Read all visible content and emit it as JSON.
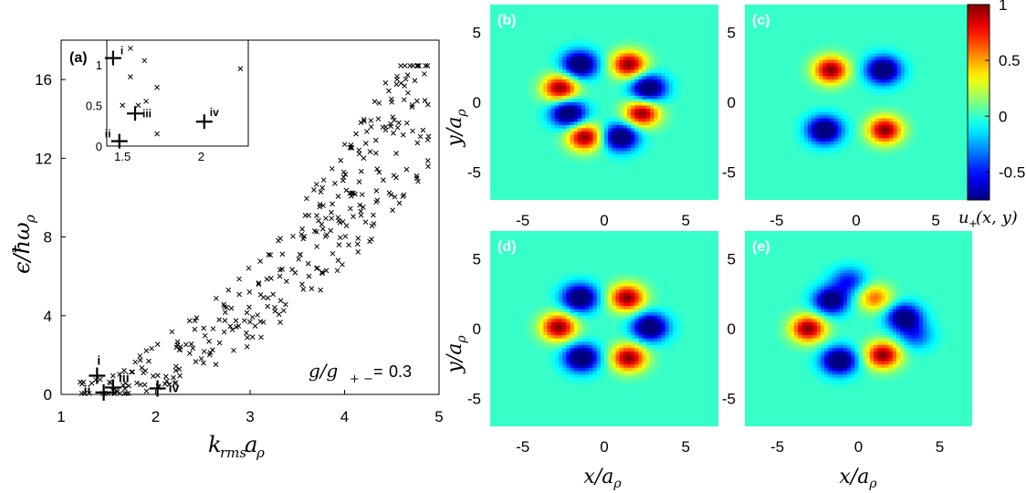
{
  "chart_data": [
    {
      "panel": "(a)",
      "type": "scatter",
      "xlabel": "k_rms a_ρ",
      "ylabel": "ϵ/ħω_ρ",
      "xlim": [
        1,
        5
      ],
      "ylim": [
        0,
        18
      ],
      "xticks": [
        "1",
        "2",
        "3",
        "4",
        "5"
      ],
      "yticks": [
        "0",
        "4",
        "8",
        "12",
        "16"
      ],
      "annotation": "g/g+− = 0.3",
      "ratio_value": "0.3",
      "ratio_text": "g/g",
      "ratio_sub": "+ −",
      "ratio_eq": "=",
      "marked_states": [
        {
          "label": "i",
          "x": 1.38,
          "y": 0.95
        },
        {
          "label": "ii",
          "x": 1.45,
          "y": 0.1
        },
        {
          "label": "iii",
          "x": 1.55,
          "y": 0.35
        },
        {
          "label": "iv",
          "x": 2.02,
          "y": 0.3
        }
      ],
      "inset": {
        "xlim": [
          1.4,
          2.3
        ],
        "ylim": [
          0,
          1.3
        ],
        "xticks": [
          "1.5",
          "2"
        ],
        "yticks": [
          "0",
          "0.5",
          "1"
        ],
        "markers": [
          {
            "x": 1.55,
            "y": 1.2
          },
          {
            "x": 1.64,
            "y": 1.05
          },
          {
            "x": 1.5,
            "y": 0.5
          },
          {
            "x": 1.55,
            "y": 0.85
          },
          {
            "x": 1.72,
            "y": 0.72
          },
          {
            "x": 1.65,
            "y": 0.55
          },
          {
            "x": 2.25,
            "y": 0.95
          },
          {
            "x": 1.6,
            "y": 0.5
          },
          {
            "x": 1.72,
            "y": 0.15
          }
        ]
      }
    },
    {
      "panel": "(b)",
      "type": "heatmap",
      "xlim": [
        -7,
        7
      ],
      "ylim": [
        -7,
        7
      ],
      "xticks": [
        "-5",
        "0",
        "5"
      ],
      "yticks": [
        "5",
        "0",
        "-5"
      ],
      "xlabel": "",
      "ylabel": "y/a_ρ",
      "lobes": [
        {
          "x": -1.5,
          "y": 2.7,
          "v": -1
        },
        {
          "x": 1.5,
          "y": 2.7,
          "v": 1
        },
        {
          "x": -2.7,
          "y": 1.0,
          "v": 1
        },
        {
          "x": 2.7,
          "y": 1.0,
          "v": -1
        },
        {
          "x": -2.2,
          "y": -0.8,
          "v": -1
        },
        {
          "x": 2.3,
          "y": -0.8,
          "v": 1
        },
        {
          "x": -1.2,
          "y": -2.5,
          "v": 1
        },
        {
          "x": 1.0,
          "y": -2.5,
          "v": -1
        }
      ]
    },
    {
      "panel": "(c)",
      "type": "heatmap",
      "xlim": [
        -7,
        7
      ],
      "ylim": [
        -7,
        7
      ],
      "xticks": [
        "-5",
        "0",
        "5"
      ],
      "yticks": [
        "5",
        "0",
        "-5"
      ],
      "xlabel": "",
      "ylabel": "",
      "lobes": [
        {
          "x": -1.6,
          "y": 2.3,
          "v": 1
        },
        {
          "x": 1.7,
          "y": 2.3,
          "v": -1
        },
        {
          "x": -2.0,
          "y": -2.0,
          "v": -1
        },
        {
          "x": 1.8,
          "y": -2.0,
          "v": 1
        }
      ]
    },
    {
      "panel": "(d)",
      "type": "heatmap",
      "xlim": [
        -7,
        7
      ],
      "ylim": [
        -7,
        7
      ],
      "xticks": [
        "-5",
        "0",
        "5"
      ],
      "yticks": [
        "5",
        "0",
        "-5"
      ],
      "xlabel": "x/a_ρ",
      "ylabel": "y/a_ρ",
      "lobes": [
        {
          "x": -1.5,
          "y": 2.2,
          "v": -1
        },
        {
          "x": 1.4,
          "y": 2.2,
          "v": 1
        },
        {
          "x": -2.8,
          "y": 0.1,
          "v": 1
        },
        {
          "x": 2.8,
          "y": 0.1,
          "v": -1
        },
        {
          "x": -1.4,
          "y": -2.1,
          "v": -1
        },
        {
          "x": 1.5,
          "y": -2.1,
          "v": 1
        }
      ]
    },
    {
      "panel": "(e)",
      "type": "heatmap",
      "xlim": [
        -7,
        7
      ],
      "ylim": [
        -7,
        7
      ],
      "xticks": [
        "-5",
        "0",
        "5"
      ],
      "yticks": [
        "5",
        "0",
        "-5"
      ],
      "xlabel": "x/a_ρ",
      "ylabel": "",
      "lobes": [
        {
          "x": -1.7,
          "y": 2.0,
          "v": -0.9
        },
        {
          "x": 1.0,
          "y": 2.2,
          "v": 0.6
        },
        {
          "x": -3.1,
          "y": 0.0,
          "v": 1
        },
        {
          "x": 2.8,
          "y": 0.8,
          "v": -0.9
        },
        {
          "x": -1.2,
          "y": -2.3,
          "v": -1
        },
        {
          "x": 1.5,
          "y": -1.9,
          "v": 1
        },
        {
          "x": -0.6,
          "y": 3.4,
          "v": -0.5
        },
        {
          "x": 3.5,
          "y": -0.5,
          "v": -0.4
        }
      ]
    }
  ],
  "colorbar": {
    "ticks": [
      "1",
      "0.5",
      "0",
      "-0.5"
    ],
    "tick_values": [
      1,
      0.5,
      0,
      -0.5
    ],
    "range": [
      -0.75,
      1
    ],
    "label": "u+(x,y)"
  }
}
